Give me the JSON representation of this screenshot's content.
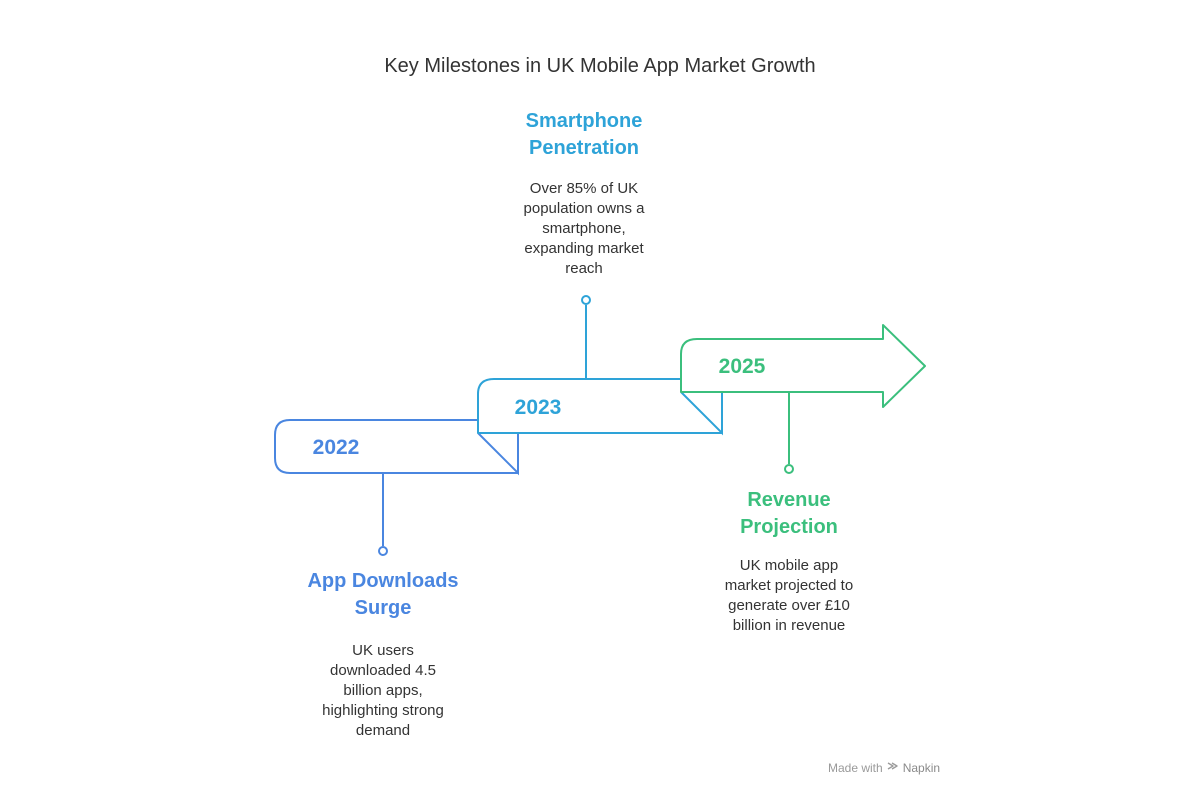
{
  "title": "Key Milestones in UK Mobile App Market Growth",
  "colors": {
    "milestone_2022": "#4a86e0",
    "milestone_2023": "#2ea3d8",
    "milestone_2025": "#3bbf7d"
  },
  "milestones": [
    {
      "year": "2022",
      "heading_line1": "App Downloads",
      "heading_line2": "Surge",
      "desc_lines": [
        "UK users",
        "downloaded 4.5",
        "billion apps,",
        "highlighting strong",
        "demand"
      ]
    },
    {
      "year": "2023",
      "heading_line1": "Smartphone",
      "heading_line2": "Penetration",
      "desc_lines": [
        "Over 85% of UK",
        "population owns a",
        "smartphone,",
        "expanding market",
        "reach"
      ]
    },
    {
      "year": "2025",
      "heading_line1": "Revenue",
      "heading_line2": "Projection",
      "desc_lines": [
        "UK mobile app",
        "market projected to",
        "generate over £10",
        "billion in revenue"
      ]
    }
  ],
  "footer": {
    "made_with": "Made with",
    "brand": "Napkin",
    "icon": "napkin-logo-icon"
  }
}
